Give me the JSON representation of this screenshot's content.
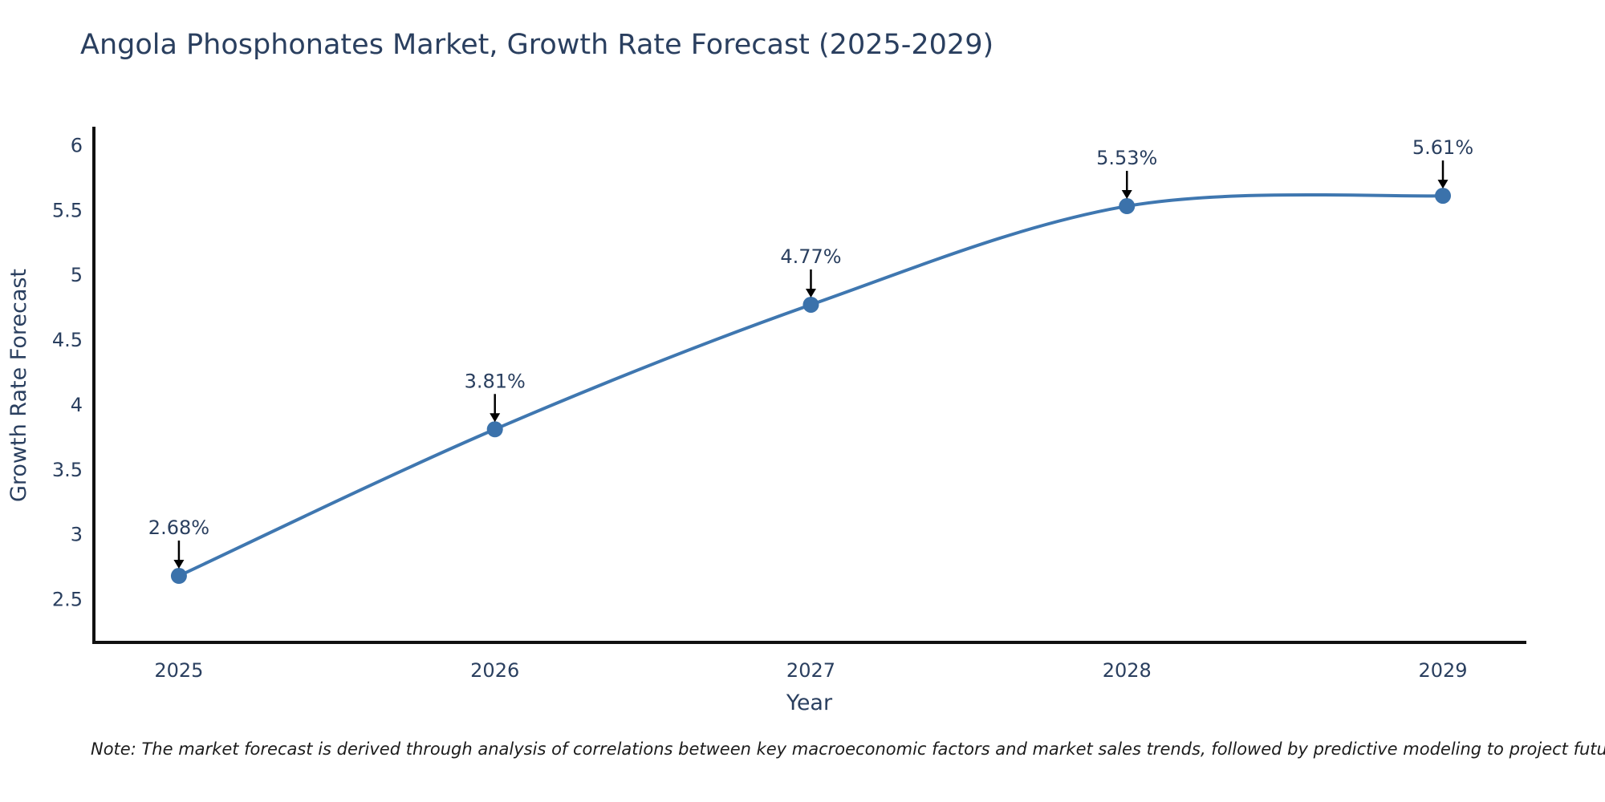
{
  "page": {
    "note": "Note: The market forecast is derived through analysis of correlations between key macroeconomic factors and market sales trends, followed by predictive modeling to project future sales"
  },
  "chart_data": {
    "type": "line",
    "title": "Angola Phosphonates Market, Growth Rate Forecast (2025-2029)",
    "xlabel": "Year",
    "ylabel": "Growth Rate Forecast",
    "x": [
      2025,
      2026,
      2027,
      2028,
      2029
    ],
    "series": [
      {
        "name": "Growth Rate Forecast",
        "values": [
          2.68,
          3.81,
          4.77,
          5.53,
          5.61
        ]
      }
    ],
    "point_labels": [
      "2.68%",
      "3.81%",
      "4.77%",
      "5.53%",
      "5.61%"
    ],
    "xticks": [
      "2025",
      "2026",
      "2027",
      "2028",
      "2029"
    ],
    "yticks": [
      2.5,
      3,
      3.5,
      4,
      4.5,
      5,
      5.5,
      6
    ],
    "xlim": [
      2024.731,
      2029.259
    ],
    "ylim": [
      2.167,
      6.13
    ],
    "grid": false,
    "legend": "none",
    "line_shape": "spline",
    "colors": {
      "line": "#3f77b0",
      "marker": "#3b72ab",
      "axis_line": "#111111",
      "text": "#2a3f5f",
      "arrow": "#000000",
      "background": "#ffffff"
    }
  }
}
